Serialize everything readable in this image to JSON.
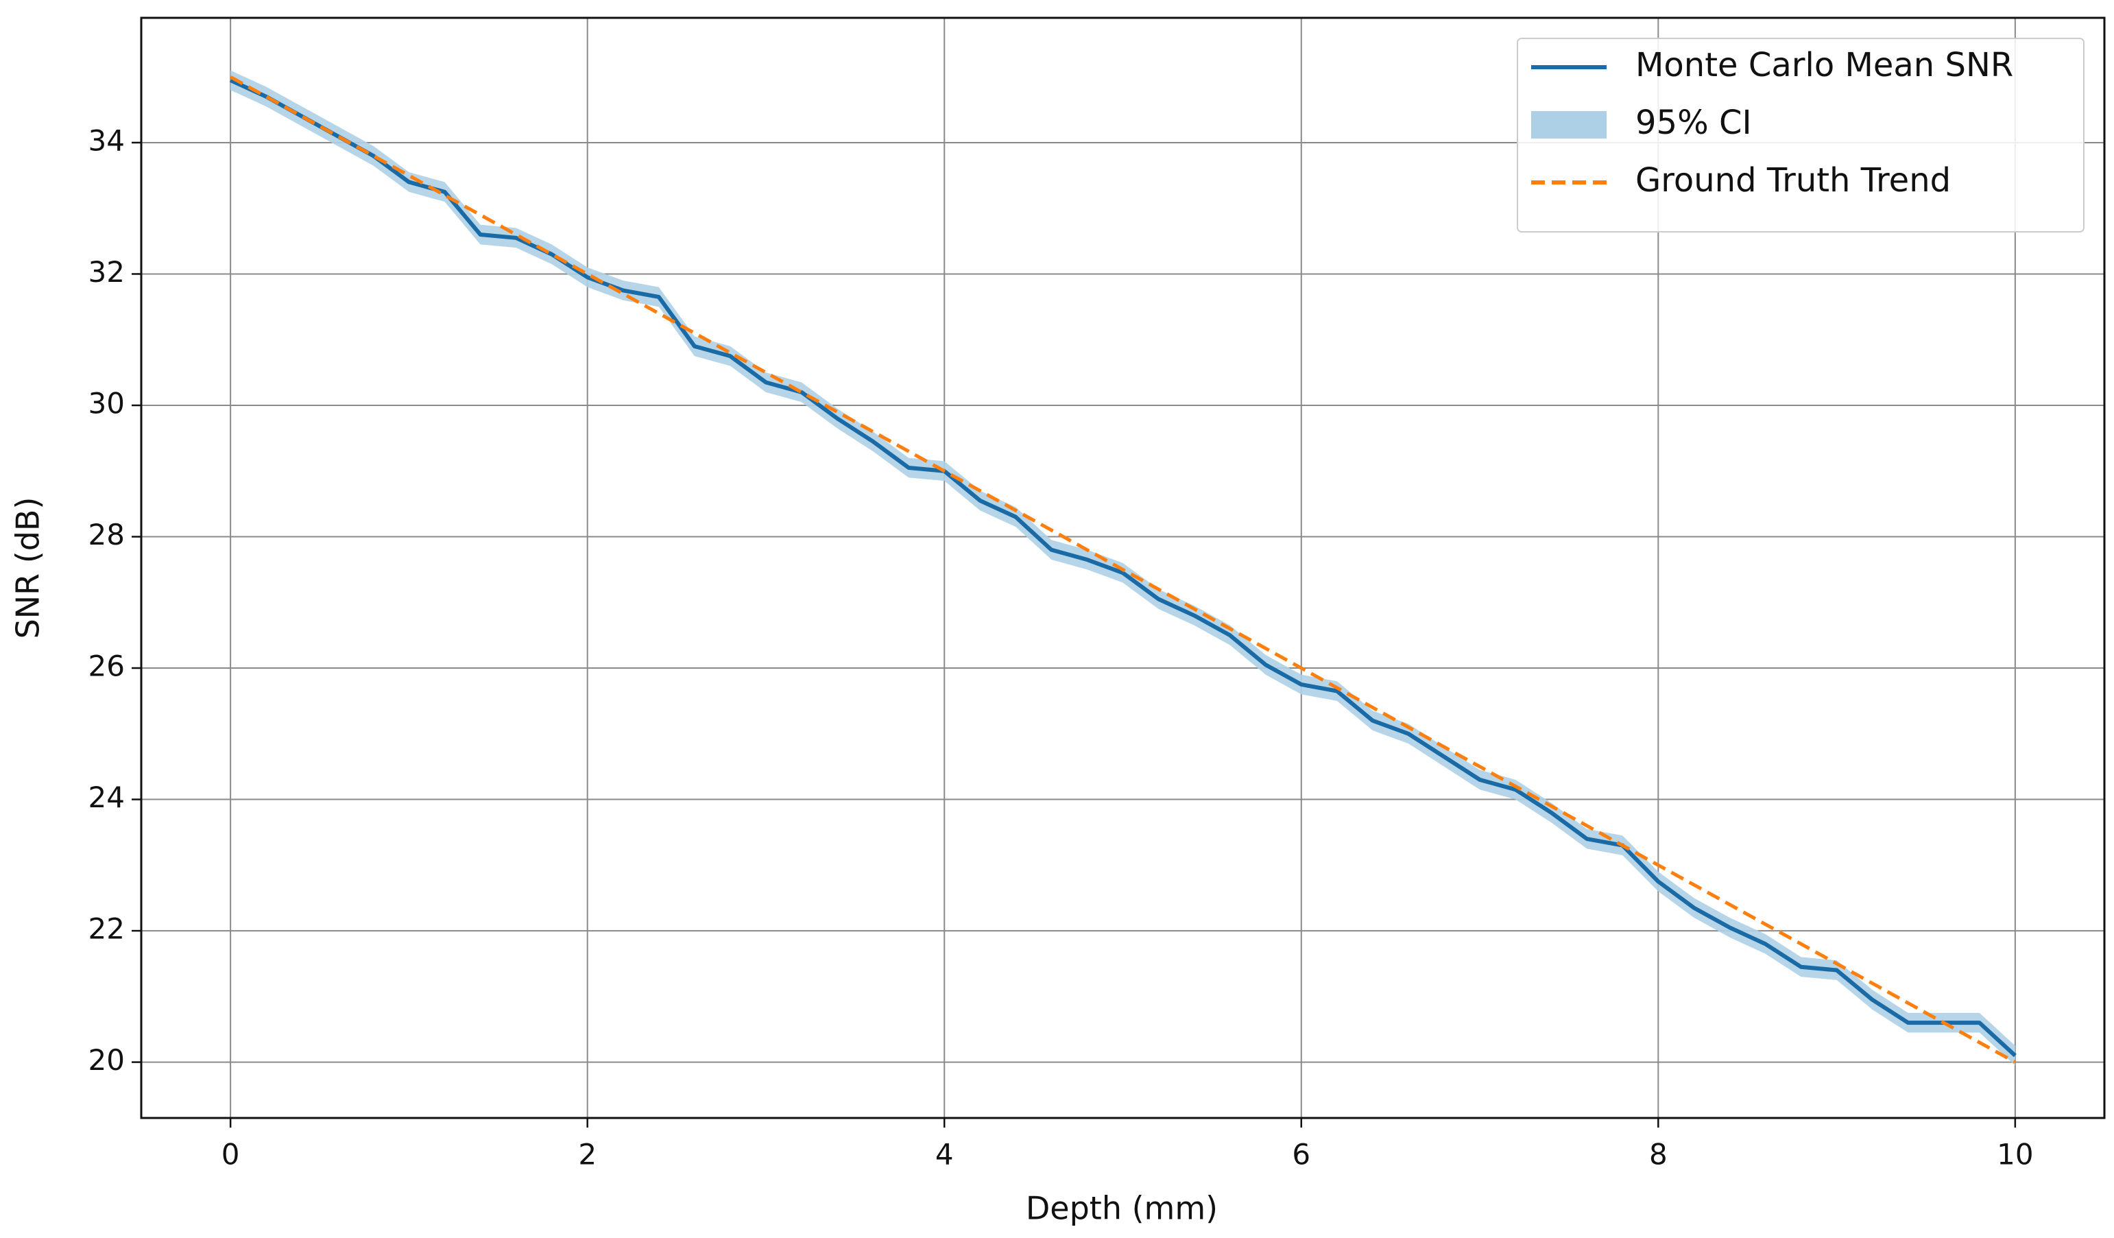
{
  "chart_data": {
    "type": "line",
    "xlabel": "Depth (mm)",
    "ylabel": "SNR (dB)",
    "x": [
      0,
      0.2,
      0.4,
      0.6,
      0.8,
      1,
      1.2,
      1.4,
      1.6,
      1.8,
      2,
      2.2,
      2.4,
      2.6,
      2.8,
      3,
      3.2,
      3.4,
      3.6,
      3.8,
      4,
      4.2,
      4.4,
      4.6,
      4.8,
      5,
      5.2,
      5.4,
      5.6,
      5.8,
      6,
      6.2,
      6.4,
      6.6,
      6.8,
      7,
      7.2,
      7.4,
      7.6,
      7.8,
      8,
      8.2,
      8.4,
      8.6,
      8.8,
      9,
      9.2,
      9.4,
      9.6,
      9.8,
      10
    ],
    "series": [
      {
        "name": "Monte Carlo Mean SNR",
        "color": "#1a6aa6",
        "values": [
          34.95,
          34.7,
          34.4,
          34.1,
          33.8,
          33.4,
          33.25,
          32.6,
          32.55,
          32.3,
          31.95,
          31.75,
          31.65,
          30.9,
          30.75,
          30.35,
          30.2,
          29.8,
          29.45,
          29.05,
          29.0,
          28.55,
          28.3,
          27.8,
          27.65,
          27.45,
          27.05,
          26.8,
          26.5,
          26.05,
          25.75,
          25.65,
          25.2,
          25.0,
          24.65,
          24.3,
          24.15,
          23.8,
          23.4,
          23.3,
          22.75,
          22.35,
          22.05,
          21.8,
          21.45,
          21.4,
          20.95,
          20.6,
          20.6,
          20.6,
          20.1
        ]
      },
      {
        "name": "95% CI",
        "color": "#aed0e6",
        "lower": [
          34.8,
          34.55,
          34.25,
          33.95,
          33.65,
          33.25,
          33.1,
          32.45,
          32.4,
          32.15,
          31.8,
          31.6,
          31.5,
          30.75,
          30.6,
          30.2,
          30.05,
          29.65,
          29.3,
          28.9,
          28.85,
          28.4,
          28.15,
          27.65,
          27.5,
          27.3,
          26.9,
          26.65,
          26.35,
          25.9,
          25.6,
          25.5,
          25.05,
          24.85,
          24.5,
          24.15,
          24.0,
          23.65,
          23.25,
          23.15,
          22.6,
          22.2,
          21.9,
          21.65,
          21.3,
          21.25,
          20.8,
          20.45,
          20.45,
          20.45,
          19.95
        ],
        "upper": [
          35.1,
          34.85,
          34.55,
          34.25,
          33.95,
          33.55,
          33.4,
          32.75,
          32.7,
          32.45,
          32.1,
          31.9,
          31.8,
          31.05,
          30.9,
          30.5,
          30.35,
          29.95,
          29.6,
          29.2,
          29.15,
          28.7,
          28.45,
          27.95,
          27.8,
          27.6,
          27.2,
          26.95,
          26.65,
          26.2,
          25.9,
          25.8,
          25.35,
          25.15,
          24.8,
          24.45,
          24.3,
          23.95,
          23.55,
          23.45,
          22.9,
          22.5,
          22.2,
          21.95,
          21.6,
          21.55,
          21.1,
          20.75,
          20.75,
          20.75,
          20.25
        ]
      },
      {
        "name": "Ground Truth Trend",
        "color": "#ff7f0e",
        "dashed": true,
        "x": [
          0,
          10
        ],
        "values": [
          35,
          20
        ]
      }
    ],
    "xlim": [
      -0.5,
      10.5
    ],
    "ylim": [
      19.15,
      35.9
    ],
    "xticks": [
      0,
      2,
      4,
      6,
      8,
      10
    ],
    "yticks": [
      20,
      22,
      24,
      26,
      28,
      30,
      32,
      34
    ],
    "grid": true,
    "legend": "upper right"
  }
}
